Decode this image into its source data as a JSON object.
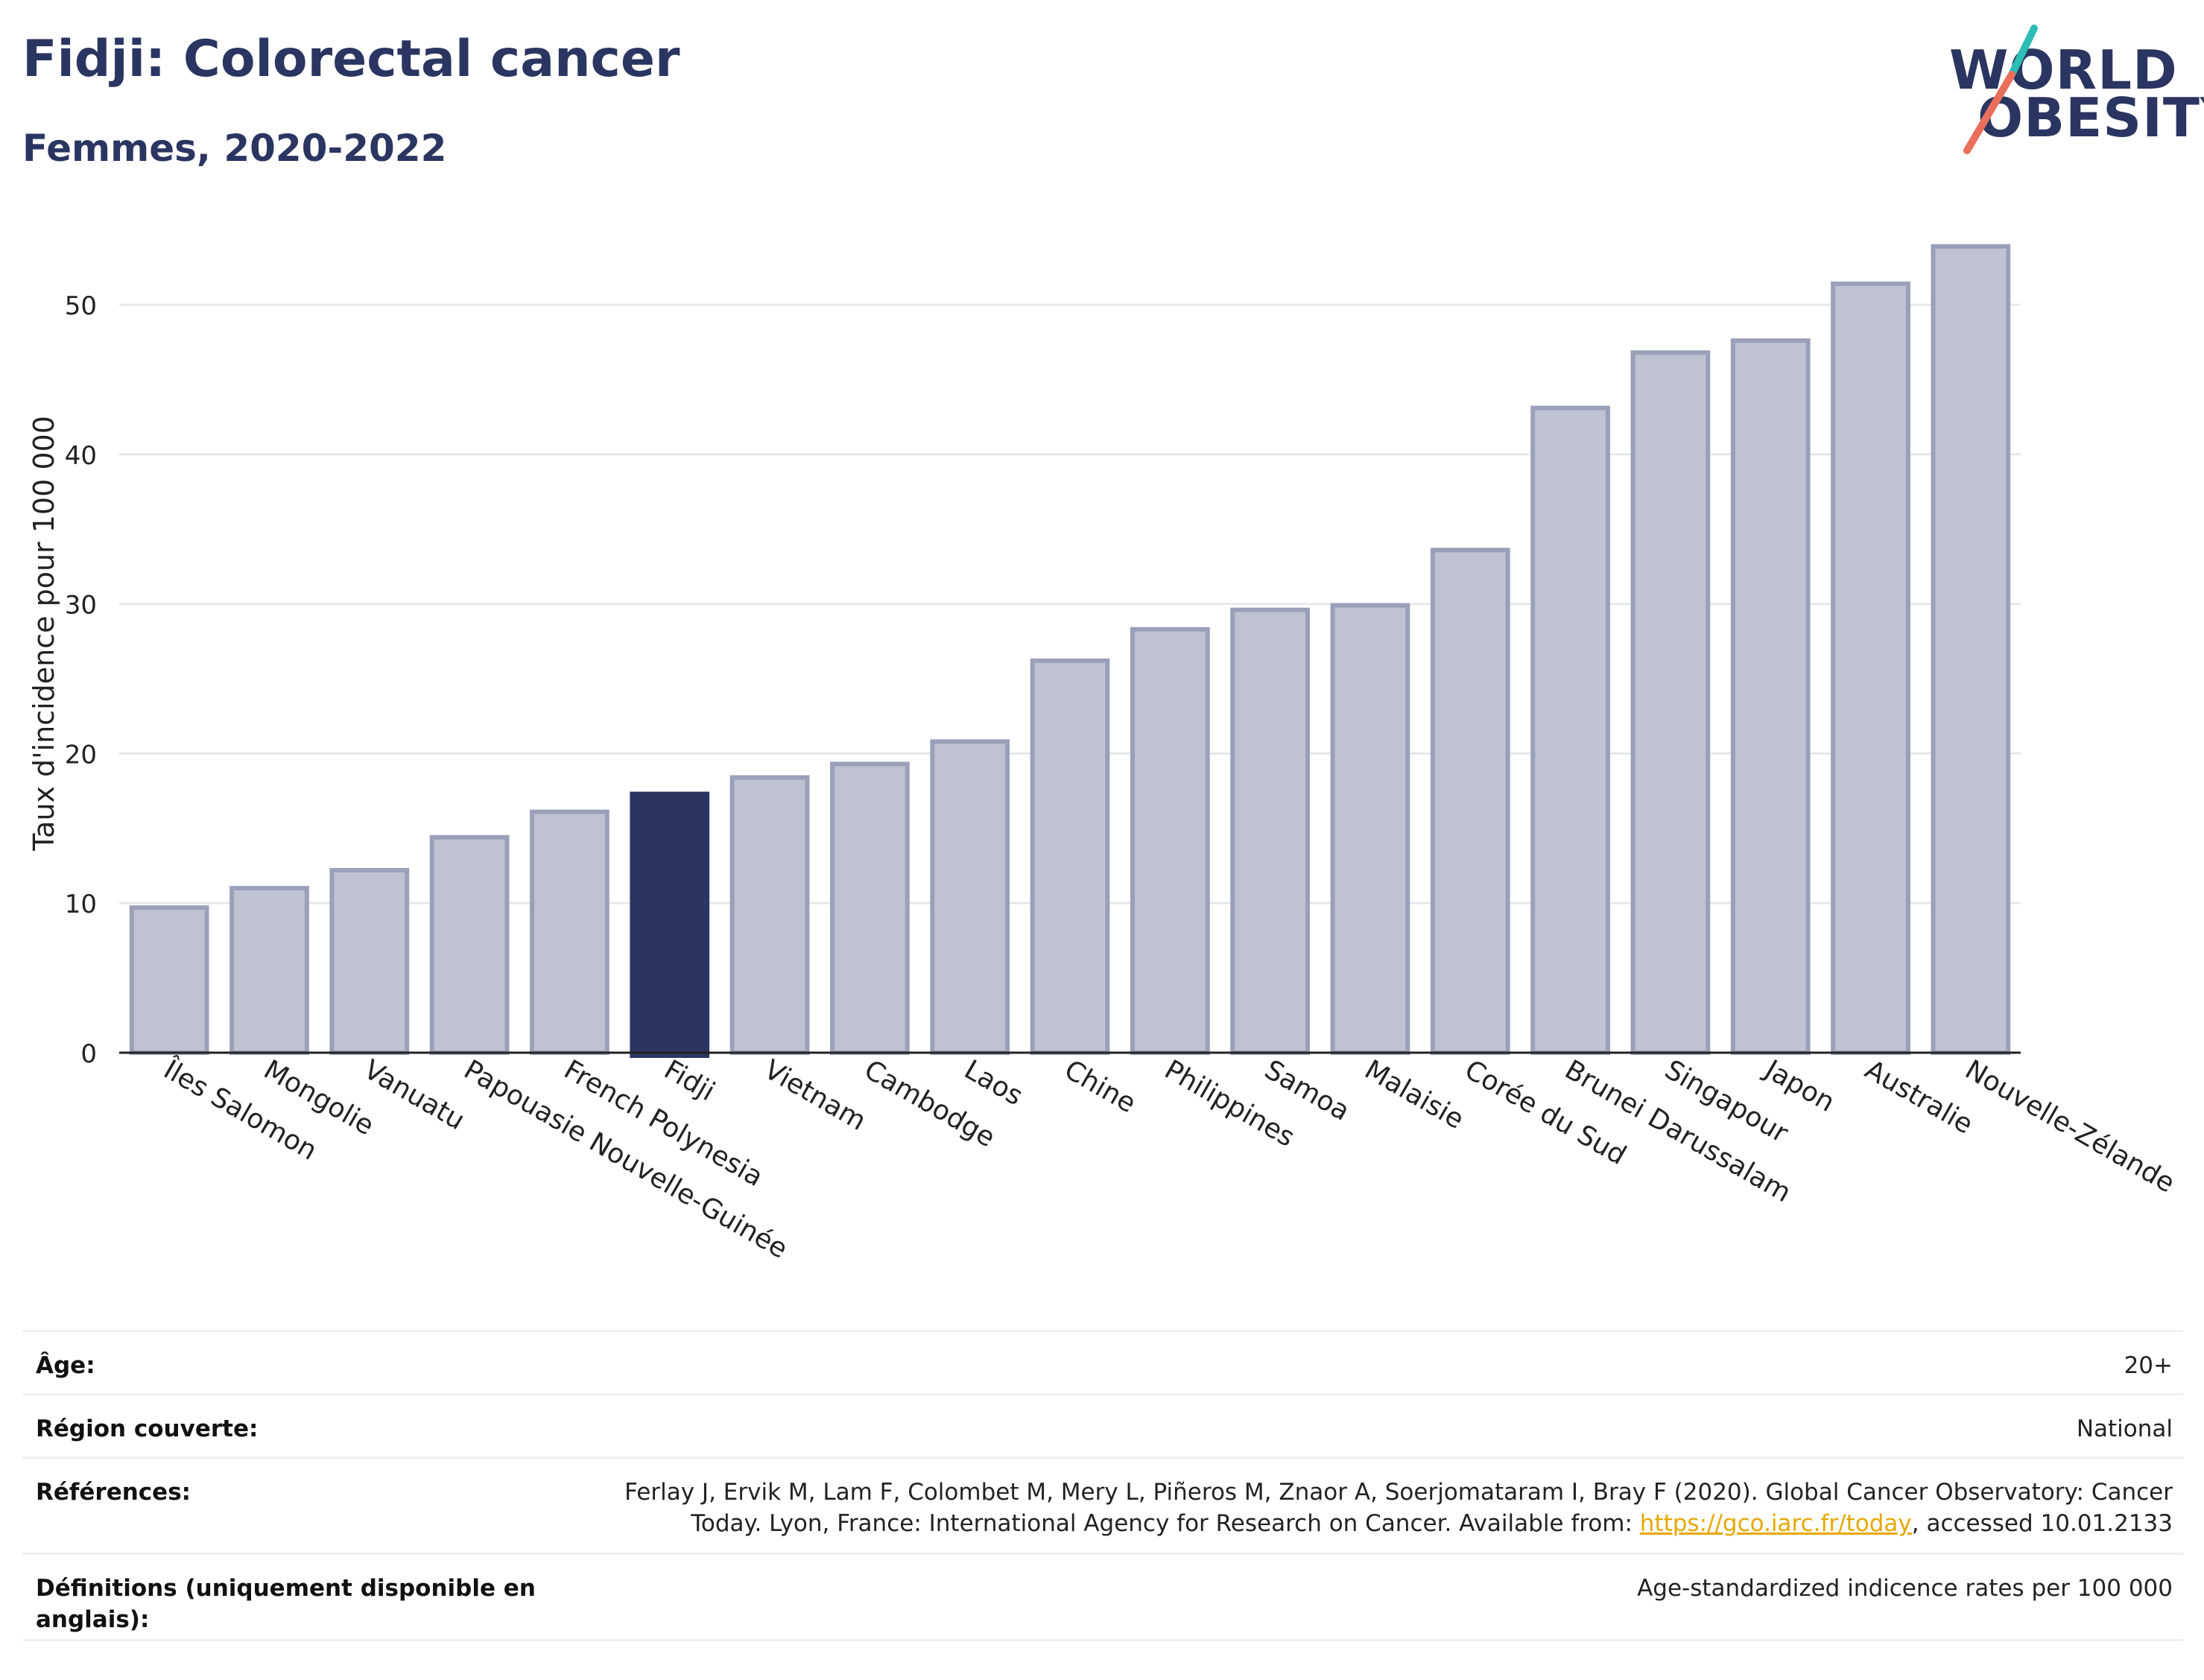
{
  "header": {
    "title": "Fidji: Colorectal cancer",
    "subtitle": "Femmes, 2020-2022"
  },
  "logo": {
    "line1": "WORLD",
    "line2": "OBESITY"
  },
  "colors": {
    "bar": "#bfc3d1",
    "bar_stroke": "#9aa0b8",
    "highlight": "#2b3561",
    "grid": "#e6e8ee",
    "axis": "#222222",
    "logo_teal": "#2cbdb4",
    "logo_coral": "#ea6e5c"
  },
  "chart_data": {
    "type": "bar",
    "ylabel": "Taux d'incidence pour 100 000",
    "ylim": [
      0,
      55
    ],
    "yticks": [
      0,
      10,
      20,
      30,
      40,
      50
    ],
    "grid": true,
    "highlight": "Fidji",
    "categories": [
      "Îles Salomon",
      "Mongolie",
      "Vanuatu",
      "Papouasie Nouvelle-Guinée",
      "French Polynesia",
      "Fidji",
      "Vietnam",
      "Cambodge",
      "Laos",
      "Chine",
      "Philippines",
      "Samoa",
      "Malaisie",
      "Corée du Sud",
      "Brunei Darussalam",
      "Singapour",
      "Japon",
      "Australie",
      "Nouvelle-Zélande"
    ],
    "values": [
      9.7,
      11.0,
      12.2,
      14.4,
      16.1,
      17.3,
      18.4,
      19.3,
      20.8,
      26.2,
      28.3,
      29.6,
      29.9,
      33.6,
      43.1,
      46.8,
      47.6,
      51.4,
      53.9
    ]
  },
  "meta": [
    {
      "label": "Âge:",
      "value": "20+"
    },
    {
      "label": "Région couverte:",
      "value": "National"
    },
    {
      "label": "Références:",
      "value_pre": "Ferlay J, Ervik M, Lam F, Colombet M, Mery L, Piñeros M, Znaor A, Soerjomataram I, Bray F (2020). Global Cancer Observatory: Cancer Today. Lyon, France: International Agency for Research on Cancer. Available from: ",
      "link": "https://gco.iarc.fr/today",
      "value_post": ", accessed 10.01.2133"
    },
    {
      "label": "Définitions (uniquement disponible en anglais):",
      "value": "Age-standardized indicence rates per 100 000"
    }
  ]
}
